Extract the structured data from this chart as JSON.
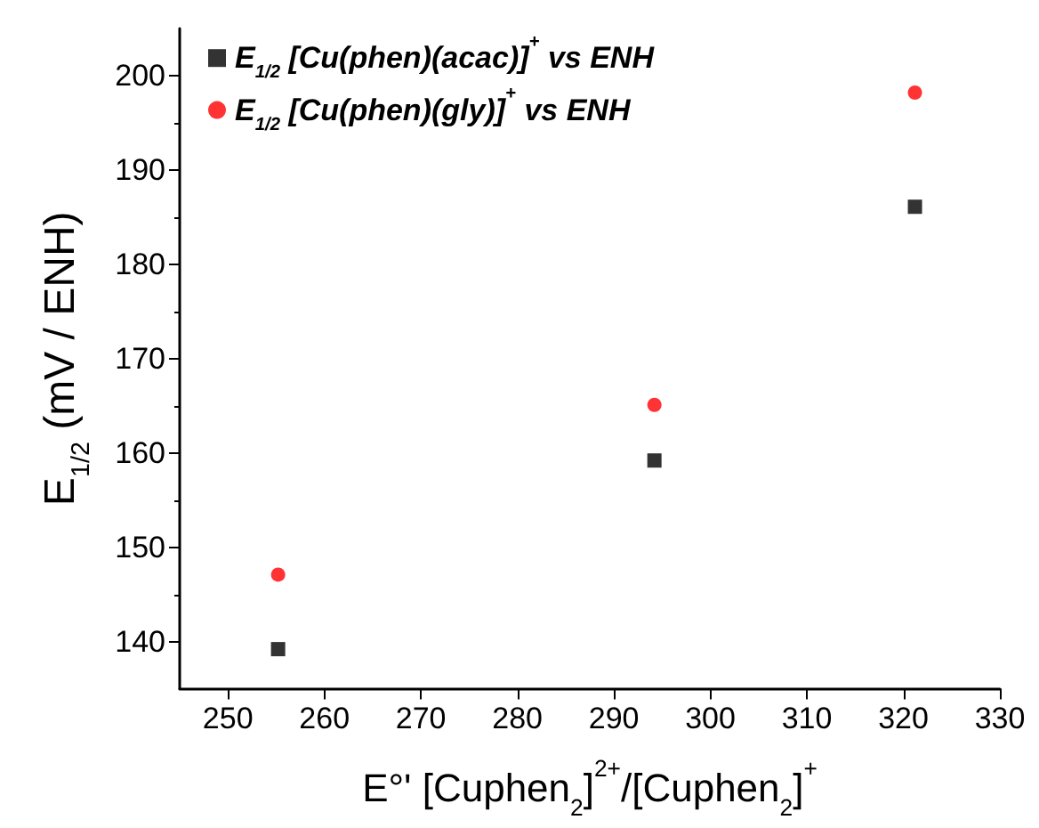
{
  "chart_data": {
    "type": "scatter",
    "xlabel": "E°' [Cuphen$_{2}$]$^{2+}$/[Cuphen$_{2}$]$^{+}$",
    "ylabel": "E$_{1/2}$ (mV / ENH)",
    "x": [
      255.2,
      294.2,
      321.2
    ],
    "series": [
      {
        "name": "E$_{1/2}$ [Cu(phen)(acac)]$^{+}$ vs ENH",
        "color": "#000000",
        "marker": "square",
        "values": [
          139.2,
          159.2,
          186.1
        ]
      },
      {
        "name": "E$_{1/2}$ [Cu(phen)(gly)]$^{+}$ vs ENH",
        "color": "#ff0000",
        "marker": "circle",
        "values": [
          147.1,
          165.1,
          198.2
        ]
      }
    ],
    "xlim": [
      245,
      330
    ],
    "xticks": [
      250,
      260,
      270,
      280,
      290,
      300,
      310,
      320,
      330
    ],
    "ylim": [
      135,
      205
    ],
    "yticks": [
      140,
      150,
      160,
      170,
      180,
      190,
      200
    ],
    "grid": false,
    "legend": "top left"
  }
}
